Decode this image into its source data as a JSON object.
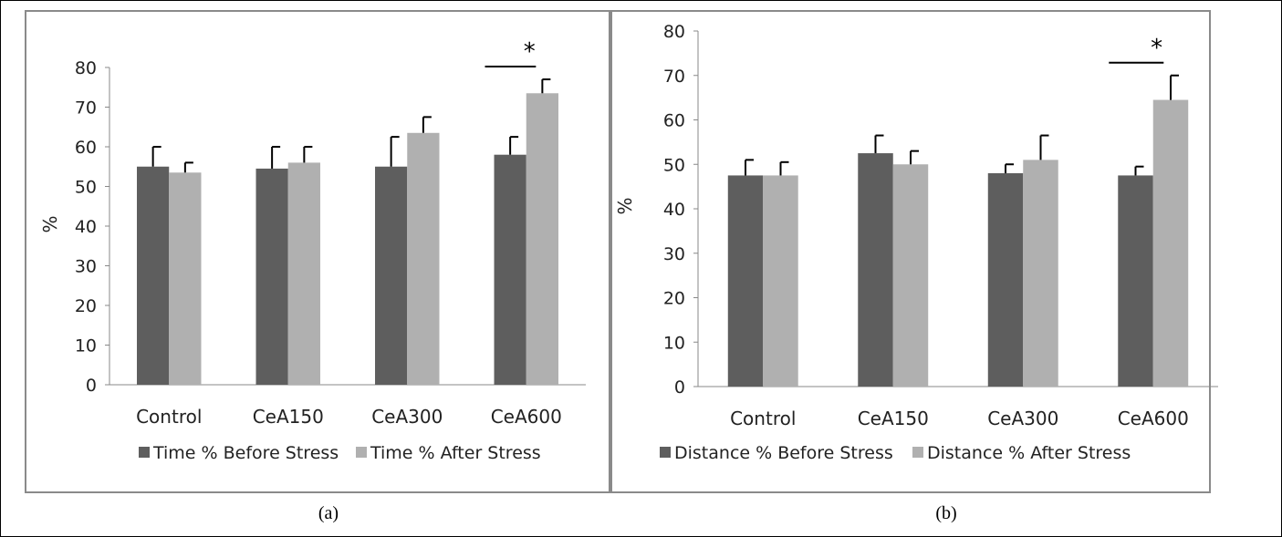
{
  "colors": {
    "before": "#5e5e5e",
    "after": "#b0b0b0",
    "axis": "#888888",
    "text": "#222222",
    "frame": "#8a8a8a"
  },
  "chart_data": [
    {
      "type": "bar",
      "caption": "(a)",
      "ylabel": "%",
      "ylim": [
        0,
        80
      ],
      "yticks": [
        "0",
        "10",
        "20",
        "30",
        "40",
        "50",
        "60",
        "70",
        "80"
      ],
      "categories": [
        "Control",
        "CeA150",
        "CeA300",
        "CeA600"
      ],
      "series": [
        {
          "name": "Time % Before Stress",
          "values": [
            55,
            54.5,
            55,
            58
          ],
          "errors": [
            5,
            5.5,
            7.5,
            4.5
          ]
        },
        {
          "name": "Time % After Stress",
          "values": [
            53.5,
            56,
            63.5,
            73.5
          ],
          "errors": [
            2.5,
            4,
            4,
            3.5
          ]
        }
      ],
      "significance": [
        {
          "category": "CeA600",
          "label": "*"
        }
      ],
      "legend": "bottom",
      "grid": false
    },
    {
      "type": "bar",
      "caption": "(b)",
      "ylabel": "%",
      "ylim": [
        0,
        80
      ],
      "yticks": [
        "0",
        "10",
        "20",
        "30",
        "40",
        "50",
        "60",
        "70",
        "80"
      ],
      "categories": [
        "Control",
        "CeA150",
        "CeA300",
        "CeA600"
      ],
      "series": [
        {
          "name": "Distance % Before Stress",
          "values": [
            47.5,
            52.5,
            48,
            47.5
          ],
          "errors": [
            3.5,
            4,
            2,
            2
          ]
        },
        {
          "name": "Distance % After Stress",
          "values": [
            47.5,
            50,
            51,
            64.5
          ],
          "errors": [
            3,
            3,
            5.5,
            5.5
          ]
        }
      ],
      "significance": [
        {
          "category": "CeA600",
          "label": "*"
        }
      ],
      "legend": "bottom",
      "grid": false
    }
  ]
}
